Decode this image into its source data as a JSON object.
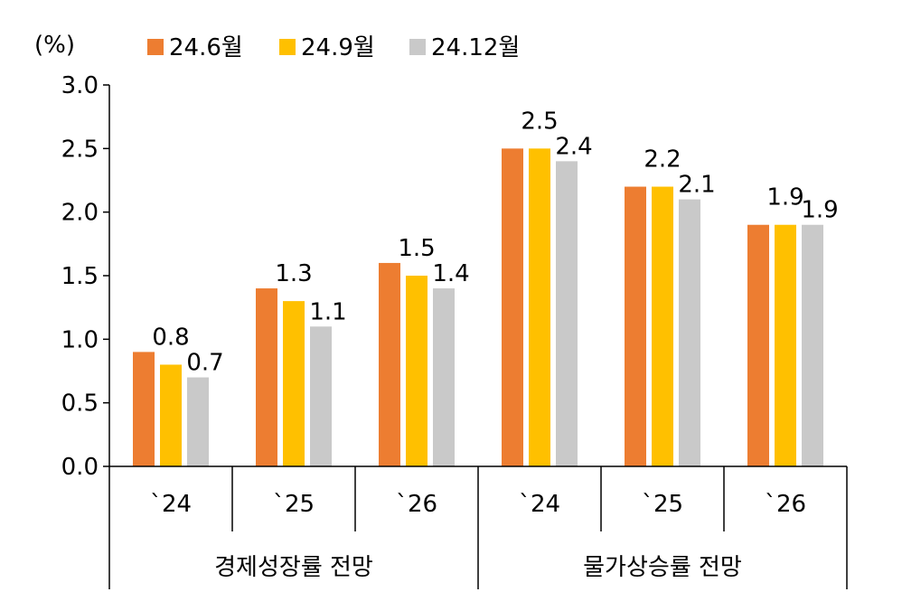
{
  "chart_data": {
    "type": "bar",
    "ylabel": "(%)",
    "ylim": [
      0,
      3.0
    ],
    "yticks": [
      "0.0",
      "0.5",
      "1.0",
      "1.5",
      "2.0",
      "2.5",
      "3.0"
    ],
    "categories": [
      "`24",
      "`25",
      "`26",
      "`24",
      "`25",
      "`26"
    ],
    "groups": [
      {
        "label": "경제성장률 전망",
        "span": 3
      },
      {
        "label": "물가상승률 전망",
        "span": 3
      }
    ],
    "series": [
      {
        "name": "24.6월",
        "color": "#ED7D31",
        "values": [
          0.9,
          1.4,
          1.6,
          2.5,
          2.2,
          1.9
        ]
      },
      {
        "name": "24.9월",
        "color": "#FFC000",
        "values": [
          0.8,
          1.3,
          1.5,
          2.5,
          2.2,
          1.9
        ]
      },
      {
        "name": "24.12월",
        "color": "#C9C9C9",
        "values": [
          0.7,
          1.1,
          1.4,
          2.4,
          2.1,
          1.9
        ]
      }
    ],
    "data_labels": [
      {
        "series": 1,
        "category": 0,
        "text": "0.8"
      },
      {
        "series": 2,
        "category": 0,
        "text": "0.7"
      },
      {
        "series": 1,
        "category": 1,
        "text": "1.3"
      },
      {
        "series": 2,
        "category": 1,
        "text": "1.1"
      },
      {
        "series": 1,
        "category": 2,
        "text": "1.5"
      },
      {
        "series": 2,
        "category": 2,
        "text": "1.4"
      },
      {
        "series": 1,
        "category": 3,
        "text": "2.5"
      },
      {
        "series": 2,
        "category": 3,
        "text": "2.4"
      },
      {
        "series": 1,
        "category": 4,
        "text": "2.2"
      },
      {
        "series": 2,
        "category": 4,
        "text": "2.1"
      },
      {
        "series": 1,
        "category": 5,
        "text": "1.9"
      },
      {
        "series": 2,
        "category": 5,
        "text": "1.9"
      }
    ],
    "legend_position": "top",
    "grid": false
  }
}
